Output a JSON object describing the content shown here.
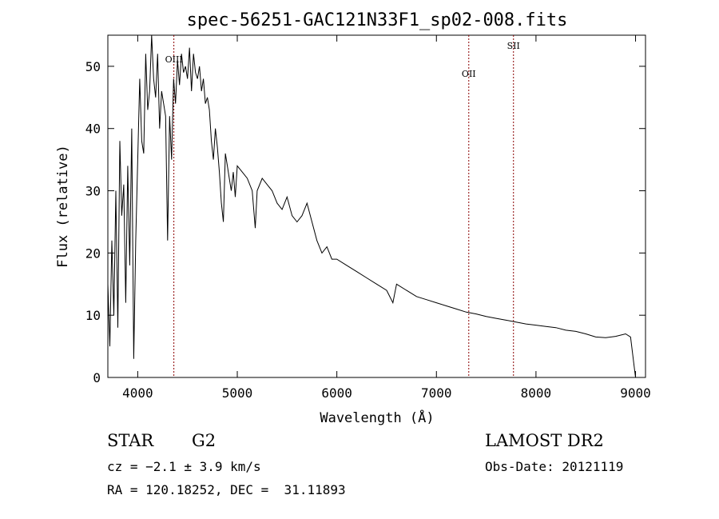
{
  "chart_data": {
    "type": "line",
    "title": "spec-56251-GAC121N33F1_sp02-008.fits",
    "xlabel": "Wavelength (Å)",
    "ylabel": "Flux (relative)",
    "xlim": [
      3700,
      9100
    ],
    "ylim": [
      0,
      55
    ],
    "xticks": [
      4000,
      5000,
      6000,
      7000,
      8000,
      9000
    ],
    "yticks": [
      0,
      10,
      20,
      30,
      40,
      50
    ],
    "grid": false,
    "line_color": "#000000",
    "marker_color": "#8b0000",
    "lines": [
      {
        "label": "OIII",
        "x": 4363
      },
      {
        "label": "OII",
        "x": 7325
      },
      {
        "label": "SII",
        "x": 7774
      }
    ],
    "x": [
      3700,
      3720,
      3740,
      3760,
      3780,
      3800,
      3820,
      3840,
      3860,
      3880,
      3900,
      3920,
      3940,
      3960,
      3980,
      4000,
      4020,
      4040,
      4060,
      4080,
      4100,
      4120,
      4140,
      4160,
      4180,
      4200,
      4220,
      4240,
      4260,
      4280,
      4300,
      4320,
      4340,
      4360,
      4380,
      4400,
      4420,
      4440,
      4460,
      4480,
      4500,
      4520,
      4540,
      4560,
      4580,
      4600,
      4620,
      4640,
      4660,
      4680,
      4700,
      4720,
      4740,
      4760,
      4780,
      4800,
      4820,
      4840,
      4860,
      4880,
      4900,
      4920,
      4940,
      4960,
      4980,
      5000,
      5050,
      5100,
      5150,
      5180,
      5200,
      5250,
      5300,
      5350,
      5400,
      5450,
      5500,
      5550,
      5600,
      5650,
      5700,
      5750,
      5800,
      5850,
      5900,
      5950,
      6000,
      6100,
      6200,
      6300,
      6400,
      6500,
      6563,
      6600,
      6700,
      6800,
      6900,
      7000,
      7100,
      7200,
      7300,
      7400,
      7500,
      7600,
      7700,
      7800,
      7900,
      8000,
      8100,
      8200,
      8300,
      8400,
      8500,
      8600,
      8700,
      8800,
      8900,
      8950,
      9000
    ],
    "y": [
      15,
      5,
      22,
      10,
      30,
      8,
      38,
      26,
      31,
      12,
      34,
      18,
      40,
      3,
      22,
      35,
      48,
      38,
      36,
      52,
      43,
      46,
      55,
      48,
      45,
      52,
      40,
      46,
      44,
      42,
      22,
      42,
      35,
      48,
      44,
      51,
      47,
      52,
      49,
      50,
      48,
      53,
      46,
      52,
      49,
      48,
      50,
      46,
      48,
      44,
      45,
      43,
      38,
      35,
      40,
      37,
      33,
      28,
      25,
      36,
      34,
      32,
      30,
      33,
      29,
      34,
      33,
      32,
      30,
      24,
      30,
      32,
      31,
      30,
      28,
      27,
      29,
      26,
      25,
      26,
      28,
      25,
      22,
      20,
      21,
      19,
      19,
      18,
      17,
      16,
      15,
      14,
      12,
      15,
      14,
      13,
      12.5,
      12,
      11.5,
      11,
      10.5,
      10.2,
      9.8,
      9.5,
      9.2,
      8.9,
      8.6,
      8.4,
      8.2,
      8.0,
      7.6,
      7.4,
      7.0,
      6.5,
      6.4,
      6.6,
      7.0,
      6.5,
      0
    ],
    "annotations": {
      "object": "STAR",
      "subclass": "G2",
      "survey": "LAMOST DR2",
      "cz": "cz = −2.1 ± 3.9 km/s",
      "obs_date": "Obs-Date: 20121119",
      "coords": "RA = 120.18252, DEC =  31.11893"
    }
  }
}
